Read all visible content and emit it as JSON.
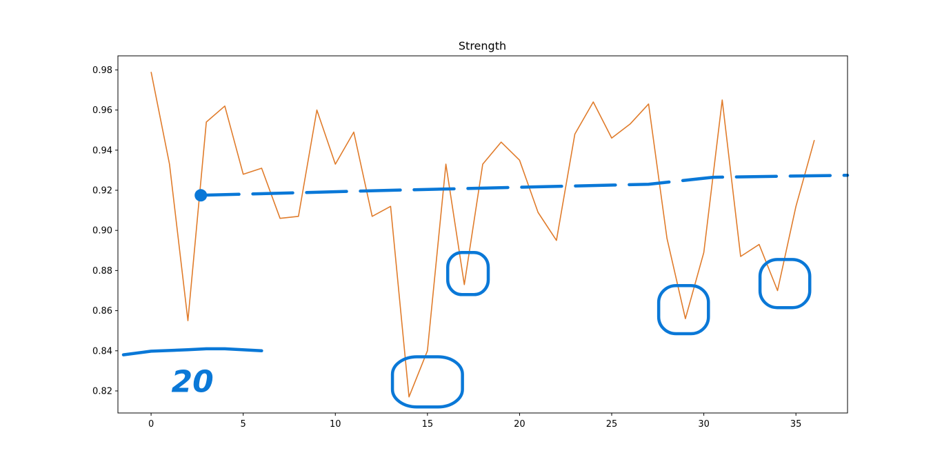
{
  "chart_data": {
    "type": "line",
    "title": "Strength",
    "xlabel": "",
    "ylabel": "",
    "xlim": [
      -1.8,
      37.8
    ],
    "ylim": [
      0.809,
      0.987
    ],
    "xticks": [
      0,
      5,
      10,
      15,
      20,
      25,
      30,
      35
    ],
    "yticks": [
      0.82,
      0.84,
      0.86,
      0.88,
      0.9,
      0.92,
      0.94,
      0.96,
      0.98
    ],
    "xtick_labels": [
      "0",
      "5",
      "10",
      "15",
      "20",
      "25",
      "30",
      "35"
    ],
    "ytick_labels": [
      "0.82",
      "0.84",
      "0.86",
      "0.88",
      "0.90",
      "0.92",
      "0.94",
      "0.96",
      "0.98"
    ],
    "grid": false,
    "series": [
      {
        "color": "#e07b2a",
        "x": [
          0,
          1,
          2,
          3,
          4,
          5,
          6,
          7,
          8,
          9,
          10,
          11,
          12,
          13,
          14,
          15,
          16,
          17,
          18,
          19,
          20,
          21,
          22,
          23,
          24,
          25,
          26,
          27,
          28,
          29,
          30,
          31,
          32,
          33,
          34,
          35,
          36
        ],
        "y": [
          0.979,
          0.933,
          0.855,
          0.954,
          0.962,
          0.928,
          0.931,
          0.906,
          0.907,
          0.96,
          0.933,
          0.949,
          0.907,
          0.912,
          0.817,
          0.84,
          0.933,
          0.873,
          0.933,
          0.944,
          0.935,
          0.909,
          0.895,
          0.948,
          0.964,
          0.946,
          0.953,
          0.963,
          0.896,
          0.856,
          0.889,
          0.965,
          0.887,
          0.893,
          0.87,
          0.912,
          0.945
        ]
      }
    ],
    "annotations": {
      "color": "#0a78d7",
      "handwritten_number": "20",
      "dashed_trend": [
        [
          2.6,
          0.9175
        ],
        [
          13,
          0.92
        ],
        [
          20,
          0.9215
        ],
        [
          27,
          0.923
        ],
        [
          28.5,
          0.9245
        ],
        [
          30.5,
          0.9265
        ],
        [
          37.8,
          0.9275
        ]
      ],
      "underline": [
        [
          -1.5,
          0.838
        ],
        [
          0,
          0.8398
        ],
        [
          2,
          0.8405
        ],
        [
          3,
          0.841
        ],
        [
          4,
          0.841
        ],
        [
          6,
          0.84
        ]
      ],
      "circled_points": [
        {
          "x": 15.0,
          "y": 0.8245,
          "rx": 1.9,
          "ry": 0.0125
        },
        {
          "x": 17.2,
          "y": 0.8785,
          "rx": 1.1,
          "ry": 0.0105
        },
        {
          "x": 28.9,
          "y": 0.8605,
          "rx": 1.35,
          "ry": 0.012
        },
        {
          "x": 34.4,
          "y": 0.8735,
          "rx": 1.35,
          "ry": 0.012
        }
      ]
    }
  }
}
